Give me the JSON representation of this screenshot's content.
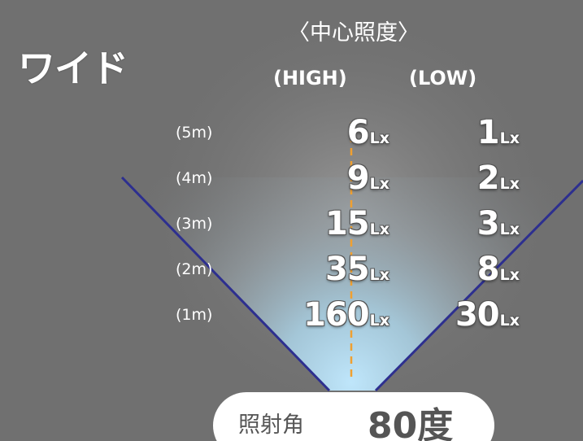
{
  "title": "ワイド",
  "header": "〈中心照度〉",
  "columns": {
    "high": "(HIGH)",
    "low": "(LOW)"
  },
  "unit": "Lx",
  "rows": [
    {
      "distance": "(5m)",
      "high": "6",
      "low": "1"
    },
    {
      "distance": "(4m)",
      "high": "9",
      "low": "2"
    },
    {
      "distance": "(3m)",
      "high": "15",
      "low": "3"
    },
    {
      "distance": "(2m)",
      "high": "35",
      "low": "8"
    },
    {
      "distance": "(1m)",
      "high": "160",
      "low": "30"
    }
  ],
  "beam": {
    "label": "照射角",
    "value": "80度"
  },
  "colors": {
    "background": "#707070",
    "beam_lines": "#2d2f8f",
    "center_line": "#f0a030",
    "light_glow": "#bfe6fb"
  }
}
